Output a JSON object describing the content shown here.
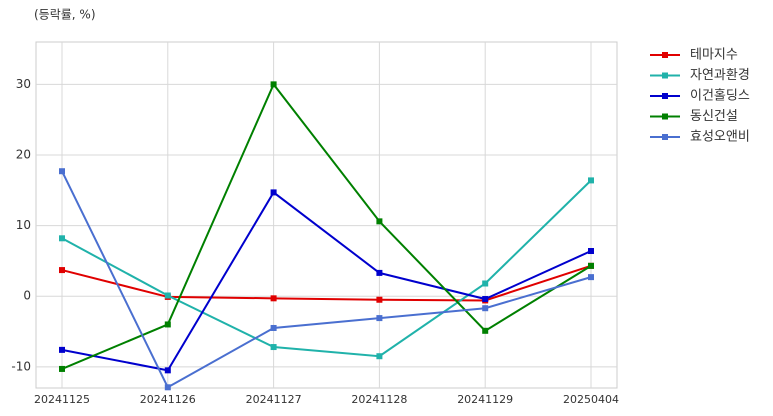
{
  "chart_data": {
    "type": "line",
    "y_label": "(등락률, %)",
    "categories": [
      "20241125",
      "20241126",
      "20241127",
      "20241128",
      "20241129",
      "20250404"
    ],
    "series": [
      {
        "name": "테마지수",
        "color": "#e00000",
        "values": [
          3.7,
          -0.1,
          -0.3,
          -0.5,
          -0.6,
          4.3
        ]
      },
      {
        "name": "자연과환경",
        "color": "#20b2aa",
        "values": [
          8.2,
          0.1,
          -7.2,
          -8.5,
          1.8,
          16.4
        ]
      },
      {
        "name": "이건홀딩스",
        "color": "#0000cd",
        "values": [
          -7.6,
          -10.5,
          14.7,
          3.3,
          -0.4,
          6.4
        ]
      },
      {
        "name": "동신건설",
        "color": "#008000",
        "values": [
          -10.3,
          -4.0,
          30.0,
          10.6,
          -4.9,
          4.3
        ]
      },
      {
        "name": "효성오앤비",
        "color": "#4a6fd0",
        "values": [
          17.7,
          -12.9,
          -4.5,
          -3.1,
          -1.7,
          2.7
        ]
      }
    ],
    "ylim": [
      -13,
      36
    ],
    "yticks": [
      -10,
      0,
      10,
      20,
      30
    ],
    "grid": true,
    "legend": "right"
  }
}
